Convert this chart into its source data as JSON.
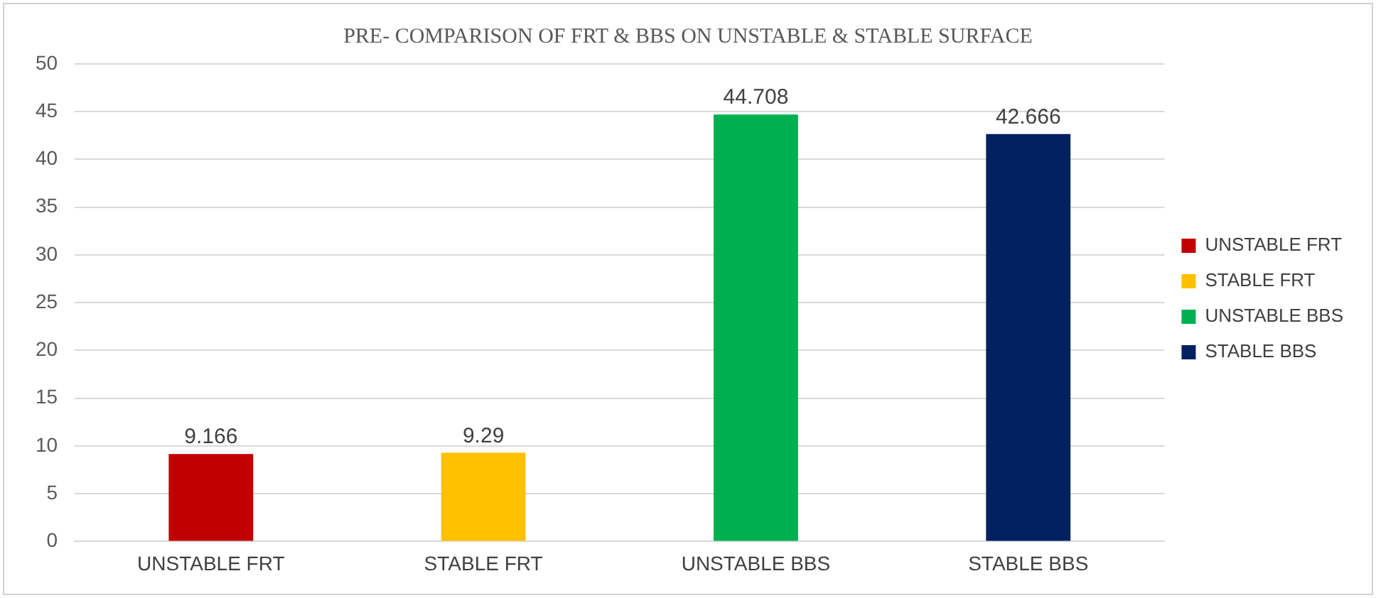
{
  "chart_data": {
    "type": "bar",
    "title": "PRE- COMPARISON OF FRT & BBS ON UNSTABLE & STABLE SURFACE",
    "categories": [
      "UNSTABLE FRT",
      "STABLE FRT",
      "UNSTABLE BBS",
      "STABLE BBS"
    ],
    "series": [
      {
        "name": "UNSTABLE FRT",
        "color": "#c00000",
        "values": [
          9.166,
          null,
          null,
          null
        ]
      },
      {
        "name": "STABLE FRT",
        "color": "#ffc000",
        "values": [
          null,
          9.29,
          null,
          null
        ]
      },
      {
        "name": "UNSTABLE BBS",
        "color": "#00b050",
        "values": [
          null,
          null,
          44.708,
          null
        ]
      },
      {
        "name": "STABLE BBS",
        "color": "#002060",
        "values": [
          null,
          null,
          null,
          42.666
        ]
      }
    ],
    "ylim": [
      0,
      50
    ],
    "yticks": [
      0,
      5,
      10,
      15,
      20,
      25,
      30,
      35,
      40,
      45,
      50
    ],
    "grid": "y",
    "legend": "right",
    "data_labels": true
  }
}
